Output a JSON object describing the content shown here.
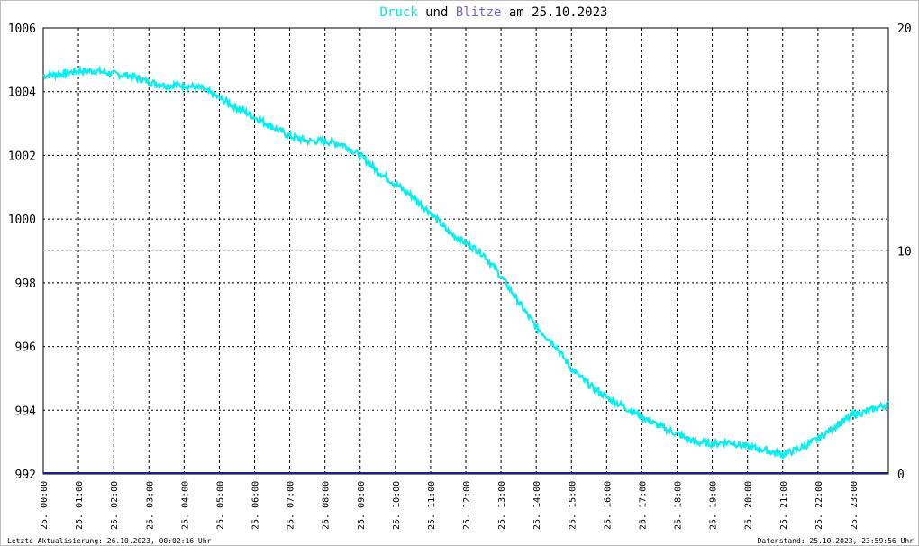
{
  "title": {
    "part1": "Druck",
    "part2": "und",
    "part3": "Blitze",
    "part4": "am 25.10.2023",
    "color1": "#00e5e5",
    "color3": "#7b61d6"
  },
  "footer": {
    "left": "Letzte Aktualisierung: 26.10.2023, 00:02:16 Uhr",
    "right": "Datenstand: 25.10.2023, 23:59:56 Uhr"
  },
  "chart_data": {
    "type": "line",
    "x_unit": "hour of day",
    "x_range": [
      0,
      24
    ],
    "y_left": {
      "range": [
        992,
        1006
      ],
      "ticks": [
        "992",
        "994",
        "996",
        "998",
        "1000",
        "1002",
        "1004",
        "1006"
      ]
    },
    "y_right": {
      "range": [
        0,
        20
      ],
      "ticks": [
        "0",
        "10",
        "20"
      ]
    },
    "x_tick_labels": [
      "25. 00:00",
      "25. 01:00",
      "25. 02:00",
      "25. 03:00",
      "25. 04:00",
      "25. 05:00",
      "25. 06:00",
      "25. 07:00",
      "25. 08:00",
      "25. 09:00",
      "25. 10:00",
      "25. 11:00",
      "25. 12:00",
      "25. 13:00",
      "25. 14:00",
      "25. 15:00",
      "25. 16:00",
      "25. 17:00",
      "25. 18:00",
      "25. 19:00",
      "25. 20:00",
      "25. 21:00",
      "25. 22:00",
      "25. 23:00"
    ],
    "grid": true,
    "series": [
      {
        "name": "Druck",
        "axis": "left",
        "color": "#00f0f0",
        "x": [
          0.0,
          0.5,
          1.0,
          1.5,
          2.0,
          2.5,
          3.0,
          3.5,
          4.0,
          4.5,
          5.0,
          5.5,
          6.0,
          6.5,
          7.0,
          7.5,
          8.0,
          8.5,
          9.0,
          9.5,
          10.0,
          10.5,
          11.0,
          11.5,
          12.0,
          12.5,
          13.0,
          13.5,
          14.0,
          14.5,
          15.0,
          15.5,
          16.0,
          16.5,
          17.0,
          17.5,
          18.0,
          18.5,
          19.0,
          19.5,
          20.0,
          20.5,
          21.0,
          21.5,
          22.0,
          22.5,
          23.0,
          23.5,
          24.0
        ],
        "y": [
          1004.5,
          1004.55,
          1004.65,
          1004.65,
          1004.55,
          1004.5,
          1004.3,
          1004.2,
          1004.2,
          1004.1,
          1003.8,
          1003.5,
          1003.2,
          1002.9,
          1002.6,
          1002.45,
          1002.45,
          1002.35,
          1002.0,
          1001.5,
          1001.1,
          1000.7,
          1000.2,
          999.6,
          999.25,
          998.9,
          998.2,
          997.4,
          996.6,
          996.1,
          995.3,
          994.8,
          994.4,
          994.1,
          993.8,
          993.5,
          993.25,
          993.0,
          992.95,
          993.0,
          992.85,
          992.75,
          992.6,
          992.8,
          993.1,
          993.5,
          993.85,
          994.0,
          994.2
        ]
      },
      {
        "name": "Blitze",
        "axis": "right",
        "color": "#1a237e",
        "x": [
          0,
          24
        ],
        "y": [
          0,
          0
        ]
      }
    ]
  }
}
